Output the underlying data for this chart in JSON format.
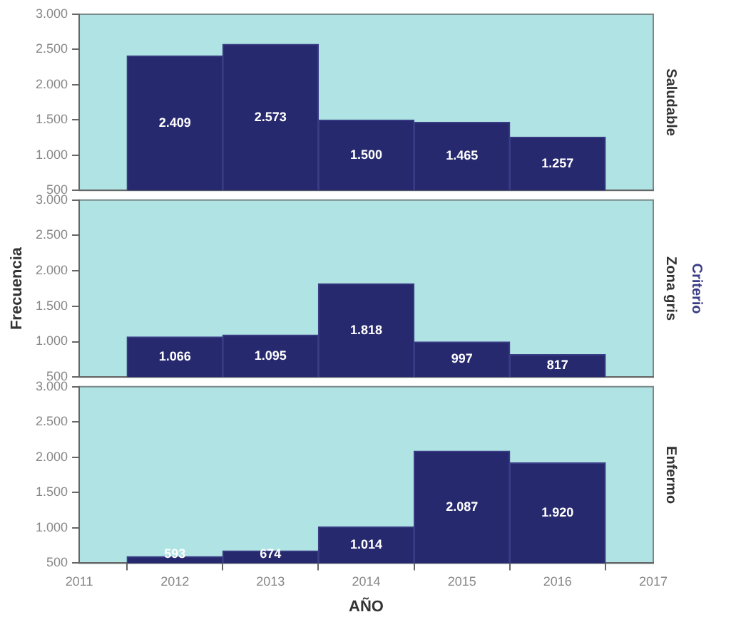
{
  "chart_data": [
    {
      "type": "histogram",
      "y2label": "Saludable",
      "bins": [
        2011.5,
        2012.5,
        2013.5,
        2014.5,
        2015.5,
        2016.5
      ],
      "values": [
        2409,
        2573,
        1500,
        1465,
        1257
      ],
      "value_labels": [
        "2.409",
        "2.573",
        "1.500",
        "1.465",
        "1.257"
      ],
      "color": "#27296e",
      "xlim": [
        2011,
        2017
      ],
      "xticks": [
        2011,
        2012,
        2013,
        2014,
        2015,
        2016,
        2017
      ],
      "ylim": [
        500,
        3000
      ],
      "yticks": [
        {
          "value": 500,
          "label": "500"
        },
        {
          "value": 1000,
          "label": "1.000"
        },
        {
          "value": 1500,
          "label": "1.500"
        },
        {
          "value": 2000,
          "label": "2.000"
        },
        {
          "value": 2500,
          "label": "2.500"
        },
        {
          "value": 3000,
          "label": "3.000"
        }
      ],
      "tick_labels": "y",
      "grid": false,
      "legend": false
    },
    {
      "type": "histogram",
      "ylabel": "Frecuencia",
      "y2label": "Zona gris",
      "annotations": [
        "Criterio"
      ],
      "bins": [
        2011.5,
        2012.5,
        2013.5,
        2014.5,
        2015.5,
        2016.5
      ],
      "values": [
        1066,
        1095,
        1818,
        997,
        817
      ],
      "value_labels": [
        "1.066",
        "1.095",
        "1.818",
        "997",
        "817"
      ],
      "color": "#27296e",
      "xlim": [
        2011,
        2017
      ],
      "xticks": [
        2011,
        2012,
        2013,
        2014,
        2015,
        2016,
        2017
      ],
      "ylim": [
        500,
        3000
      ],
      "yticks": [
        {
          "value": 500,
          "label": "500"
        },
        {
          "value": 1000,
          "label": "1.000"
        },
        {
          "value": 1500,
          "label": "1.500"
        },
        {
          "value": 2000,
          "label": "2.000"
        },
        {
          "value": 2500,
          "label": "2.500"
        },
        {
          "value": 3000,
          "label": "3.000"
        }
      ],
      "tick_labels": "y",
      "grid": false,
      "legend": false
    },
    {
      "type": "histogram",
      "xlabel": "AÑO",
      "y2label": "Enfermo",
      "bins": [
        2011.5,
        2012.5,
        2013.5,
        2014.5,
        2015.5,
        2016.5
      ],
      "values": [
        593,
        674,
        1014,
        2087,
        1920
      ],
      "value_labels": [
        "593",
        "674",
        "1.014",
        "2.087",
        "1.920"
      ],
      "color": "#27296e",
      "xlim": [
        2011,
        2017
      ],
      "xticks": [
        2011,
        2012,
        2013,
        2014,
        2015,
        2016,
        2017
      ],
      "ylim": [
        500,
        3000
      ],
      "yticks": [
        {
          "value": 500,
          "label": "500"
        },
        {
          "value": 1000,
          "label": "1.000"
        },
        {
          "value": 1500,
          "label": "1.500"
        },
        {
          "value": 2000,
          "label": "2.000"
        },
        {
          "value": 2500,
          "label": "2.500"
        },
        {
          "value": 3000,
          "label": "3.000"
        }
      ],
      "grid": false,
      "legend": false
    }
  ]
}
